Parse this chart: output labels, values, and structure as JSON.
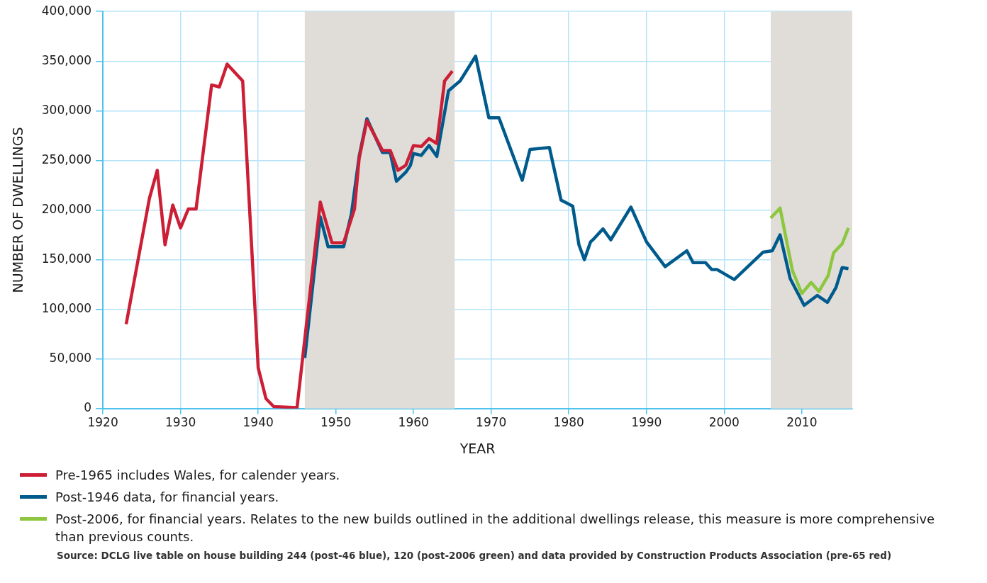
{
  "chart_data": {
    "type": "line",
    "xlabel": "YEAR",
    "ylabel": "NUMBER OF DWELLINGS",
    "xlim": [
      1920,
      2016.5
    ],
    "xticks": [
      1920,
      1930,
      1940,
      1950,
      1960,
      1970,
      1980,
      1990,
      2000,
      2010
    ],
    "ylim": [
      0,
      400000
    ],
    "yticks": [
      0,
      {
        "value": 50000,
        "label": "50,000"
      },
      {
        "value": 100000,
        "label": "100,000"
      },
      {
        "value": 150000,
        "label": "150,000"
      },
      {
        "value": 200000,
        "label": "200,000"
      },
      {
        "value": 250000,
        "label": "250,000"
      },
      {
        "value": 300000,
        "label": "300,000"
      },
      {
        "value": 350000,
        "label": "350,000"
      },
      {
        "value": 400000,
        "label": "400,000"
      }
    ],
    "grid": true,
    "legend": "bottom",
    "marker": "none",
    "line_style": "solid",
    "bands": [
      {
        "axis": "x",
        "from": 1946,
        "to": 1965.3,
        "color": "#e0ddd9"
      },
      {
        "axis": "x",
        "from": 2006,
        "to": 2016.5,
        "color": "#e0ddd9"
      }
    ],
    "series": [
      {
        "name": "Pre-1965 includes Wales, for calender years.",
        "color": "#cc1f36",
        "x": [
          1923,
          1926,
          1927,
          1928,
          1929,
          1930,
          1931,
          1932,
          1934,
          1935,
          1936,
          1938,
          1940,
          1941,
          1942,
          1945,
          1948,
          1949.5,
          1951,
          1952.4,
          1953,
          1954,
          1956,
          1957,
          1958,
          1959,
          1960,
          1961,
          1962,
          1963,
          1964,
          1965
        ],
        "values": [
          85000,
          212000,
          240000,
          165000,
          205000,
          182000,
          201000,
          201000,
          326000,
          324000,
          347000,
          330000,
          41000,
          10000,
          2000,
          1000,
          208000,
          167000,
          167000,
          201000,
          252000,
          290000,
          260000,
          260000,
          240000,
          245000,
          265000,
          264000,
          272000,
          267000,
          330000,
          340000
        ]
      },
      {
        "name": "Post-1946 data, for financial years.",
        "color": "#005b8c",
        "x": [
          1946,
          1948,
          1949,
          1951,
          1952,
          1953,
          1954,
          1956,
          1957,
          1957.8,
          1959,
          1959.6,
          1960,
          1961,
          1962,
          1963,
          1964.5,
          1966,
          1968,
          1969.7,
          1971,
          1974,
          1975,
          1977.5,
          1979,
          1980.5,
          1981.3,
          1982,
          1982.8,
          1983.1,
          1984.4,
          1985.4,
          1988,
          1990,
          1992.4,
          1995.2,
          1996,
          1997.6,
          1998.4,
          1999.1,
          2001.3,
          2005,
          2006.2,
          2007.2,
          2008.5,
          2010.3,
          2012,
          2013.3,
          2014.4,
          2015.2,
          2016
        ],
        "values": [
          51000,
          193000,
          163000,
          163000,
          196000,
          254000,
          292000,
          258000,
          258000,
          229000,
          238000,
          245000,
          257000,
          255000,
          265000,
          254000,
          320000,
          330000,
          355000,
          293000,
          293000,
          230000,
          261000,
          263000,
          210000,
          204000,
          165000,
          150000,
          168000,
          170000,
          181000,
          170000,
          203000,
          168000,
          143000,
          159000,
          147000,
          147000,
          140000,
          140000,
          130000,
          157500,
          159000,
          175000,
          131000,
          104000,
          114000,
          107000,
          122000,
          142000,
          141000
        ]
      },
      {
        "name": "Post-2006, for financial years. Relates to the new builds outlined in the additional dwellings release, this measure is more comprehensive than previous counts.",
        "color": "#8dc63f",
        "x": [
          2006,
          2007.2,
          2008.8,
          2010,
          2011.2,
          2012.2,
          2013.4,
          2014.1,
          2015.2,
          2016
        ],
        "values": [
          192000,
          202000,
          139000,
          116000,
          127000,
          118000,
          134000,
          157000,
          166000,
          182000
        ]
      }
    ],
    "annotations": [
      "Source: DCLG live table on house building 244 (post-46 blue), 120 (post-2006 green) and data provided by Construction Products Association (pre-65 red)"
    ]
  }
}
